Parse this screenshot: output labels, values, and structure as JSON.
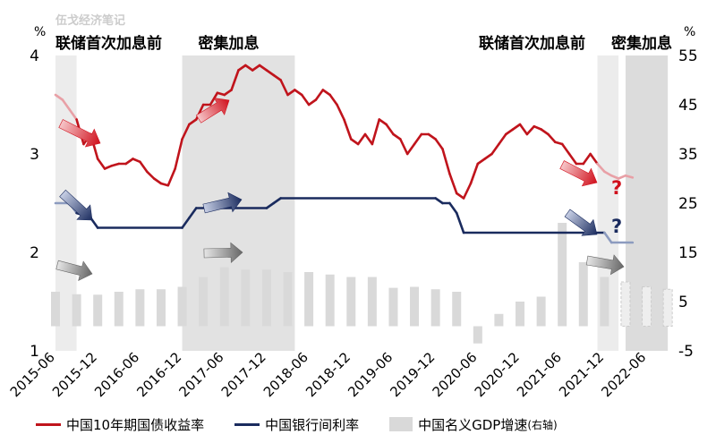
{
  "watermark": "伍戈经济笔记",
  "chart_data": {
    "type": "line",
    "left_unit": "%",
    "right_unit": "%",
    "y_left": {
      "min": 1,
      "max": 4,
      "ticks": [
        "1",
        "2",
        "3",
        "4"
      ]
    },
    "y_right": {
      "min": -5,
      "max": 55,
      "ticks": [
        "-5",
        "5",
        "15",
        "25",
        "35",
        "45",
        "55"
      ]
    },
    "x_tick_labels": [
      "2015-06",
      "2015-12",
      "2016-06",
      "2016-12",
      "2017-06",
      "2017-12",
      "2018-06",
      "2018-12",
      "2019-06",
      "2019-12",
      "2020-06",
      "2020-12",
      "2021-06",
      "2021-12",
      "2022-06"
    ],
    "shaded_periods": [
      {
        "label": "联储首次加息前",
        "start": "2015-06",
        "end": "2015-09"
      },
      {
        "label": "密集加息",
        "start": "2016-12",
        "end": "2018-04"
      },
      {
        "label": "联储首次加息前",
        "start": "2021-11",
        "end": "2022-02"
      },
      {
        "label": "密集加息",
        "start": "2022-03",
        "end": "2022-09"
      }
    ],
    "question_marks": [
      "?",
      "?"
    ],
    "series": [
      {
        "name": "中国10年期国债收益率",
        "axis": "left",
        "color": "#c0141c",
        "faded_color": "#e8a0a6",
        "points": [
          [
            "2015-06",
            3.6
          ],
          [
            "2015-07",
            3.55
          ],
          [
            "2015-08",
            3.45
          ],
          [
            "2015-09",
            3.35
          ],
          [
            "2015-10",
            3.1
          ],
          [
            "2015-11",
            3.2
          ],
          [
            "2015-12",
            2.95
          ],
          [
            "2016-01",
            2.85
          ],
          [
            "2016-02",
            2.88
          ],
          [
            "2016-03",
            2.9
          ],
          [
            "2016-04",
            2.9
          ],
          [
            "2016-05",
            2.95
          ],
          [
            "2016-06",
            2.92
          ],
          [
            "2016-07",
            2.82
          ],
          [
            "2016-08",
            2.75
          ],
          [
            "2016-09",
            2.7
          ],
          [
            "2016-10",
            2.68
          ],
          [
            "2016-11",
            2.85
          ],
          [
            "2016-12",
            3.15
          ],
          [
            "2017-01",
            3.3
          ],
          [
            "2017-02",
            3.35
          ],
          [
            "2017-03",
            3.5
          ],
          [
            "2017-04",
            3.5
          ],
          [
            "2017-05",
            3.62
          ],
          [
            "2017-06",
            3.6
          ],
          [
            "2017-07",
            3.65
          ],
          [
            "2017-08",
            3.85
          ],
          [
            "2017-09",
            3.9
          ],
          [
            "2017-10",
            3.85
          ],
          [
            "2017-11",
            3.9
          ],
          [
            "2017-12",
            3.85
          ],
          [
            "2018-01",
            3.8
          ],
          [
            "2018-02",
            3.75
          ],
          [
            "2018-03",
            3.6
          ],
          [
            "2018-04",
            3.65
          ],
          [
            "2018-05",
            3.6
          ],
          [
            "2018-06",
            3.5
          ],
          [
            "2018-07",
            3.55
          ],
          [
            "2018-08",
            3.65
          ],
          [
            "2018-09",
            3.6
          ],
          [
            "2018-10",
            3.5
          ],
          [
            "2018-11",
            3.35
          ],
          [
            "2018-12",
            3.15
          ],
          [
            "2019-01",
            3.1
          ],
          [
            "2019-02",
            3.2
          ],
          [
            "2019-03",
            3.1
          ],
          [
            "2019-04",
            3.35
          ],
          [
            "2019-05",
            3.3
          ],
          [
            "2019-06",
            3.2
          ],
          [
            "2019-07",
            3.15
          ],
          [
            "2019-08",
            3.0
          ],
          [
            "2019-09",
            3.1
          ],
          [
            "2019-10",
            3.2
          ],
          [
            "2019-11",
            3.2
          ],
          [
            "2019-12",
            3.15
          ],
          [
            "2020-01",
            3.05
          ],
          [
            "2020-02",
            2.8
          ],
          [
            "2020-03",
            2.6
          ],
          [
            "2020-04",
            2.55
          ],
          [
            "2020-05",
            2.7
          ],
          [
            "2020-06",
            2.9
          ],
          [
            "2020-07",
            2.95
          ],
          [
            "2020-08",
            3.0
          ],
          [
            "2020-09",
            3.1
          ],
          [
            "2020-10",
            3.2
          ],
          [
            "2020-11",
            3.25
          ],
          [
            "2020-12",
            3.3
          ],
          [
            "2021-01",
            3.2
          ],
          [
            "2021-02",
            3.28
          ],
          [
            "2021-03",
            3.25
          ],
          [
            "2021-04",
            3.2
          ],
          [
            "2021-05",
            3.12
          ],
          [
            "2021-06",
            3.1
          ],
          [
            "2021-07",
            3.0
          ],
          [
            "2021-08",
            2.9
          ],
          [
            "2021-09",
            2.9
          ],
          [
            "2021-10",
            3.0
          ],
          [
            "2021-11",
            2.9
          ],
          [
            "2021-12",
            2.82
          ],
          [
            "2022-01",
            2.78
          ],
          [
            "2022-02",
            2.75
          ],
          [
            "2022-03",
            2.78
          ],
          [
            "2022-04",
            2.76
          ]
        ]
      },
      {
        "name": "中国银行间利率",
        "axis": "left",
        "color": "#1a2b5e",
        "faded_color": "#8c9bbf",
        "points": [
          [
            "2015-06",
            2.5
          ],
          [
            "2015-08",
            2.5
          ],
          [
            "2015-09",
            2.4
          ],
          [
            "2015-11",
            2.35
          ],
          [
            "2015-12",
            2.25
          ],
          [
            "2016-12",
            2.25
          ],
          [
            "2017-01",
            2.35
          ],
          [
            "2017-02",
            2.45
          ],
          [
            "2017-12",
            2.45
          ],
          [
            "2018-01",
            2.5
          ],
          [
            "2018-02",
            2.55
          ],
          [
            "2019-12",
            2.55
          ],
          [
            "2020-01",
            2.5
          ],
          [
            "2020-02",
            2.5
          ],
          [
            "2020-03",
            2.4
          ],
          [
            "2020-04",
            2.2
          ],
          [
            "2021-12",
            2.2
          ],
          [
            "2022-01",
            2.1
          ],
          [
            "2022-04",
            2.1
          ]
        ]
      }
    ],
    "bar_series": {
      "name": "中国名义GDP增速(右轴)",
      "axis": "right",
      "color": "#d9d9d9",
      "points": [
        [
          "2015-06",
          7.0
        ],
        [
          "2015-09",
          6.5
        ],
        [
          "2015-12",
          6.4
        ],
        [
          "2016-03",
          7.0
        ],
        [
          "2016-06",
          7.5
        ],
        [
          "2016-09",
          7.5
        ],
        [
          "2016-12",
          8.0
        ],
        [
          "2017-03",
          10.0
        ],
        [
          "2017-06",
          12.0
        ],
        [
          "2017-09",
          11.5
        ],
        [
          "2017-12",
          11.5
        ],
        [
          "2018-03",
          11.0
        ],
        [
          "2018-06",
          11.0
        ],
        [
          "2018-09",
          10.5
        ],
        [
          "2018-12",
          10.0
        ],
        [
          "2019-03",
          10.0
        ],
        [
          "2019-06",
          7.8
        ],
        [
          "2019-09",
          8.0
        ],
        [
          "2019-12",
          7.5
        ],
        [
          "2020-03",
          7.0
        ],
        [
          "2020-06",
          -3.5
        ],
        [
          "2020-09",
          2.5
        ],
        [
          "2020-12",
          5.0
        ],
        [
          "2021-03",
          6.0
        ],
        [
          "2021-06",
          21.0
        ],
        [
          "2021-09",
          13.0
        ],
        [
          "2021-12",
          10.0
        ],
        [
          "2022-03",
          9.0
        ],
        [
          "2022-06",
          8.0
        ],
        [
          "2022-09",
          7.5
        ]
      ]
    },
    "legend_label": "中国名义GDP增速",
    "legend_label_suffix": "(右轴)"
  }
}
